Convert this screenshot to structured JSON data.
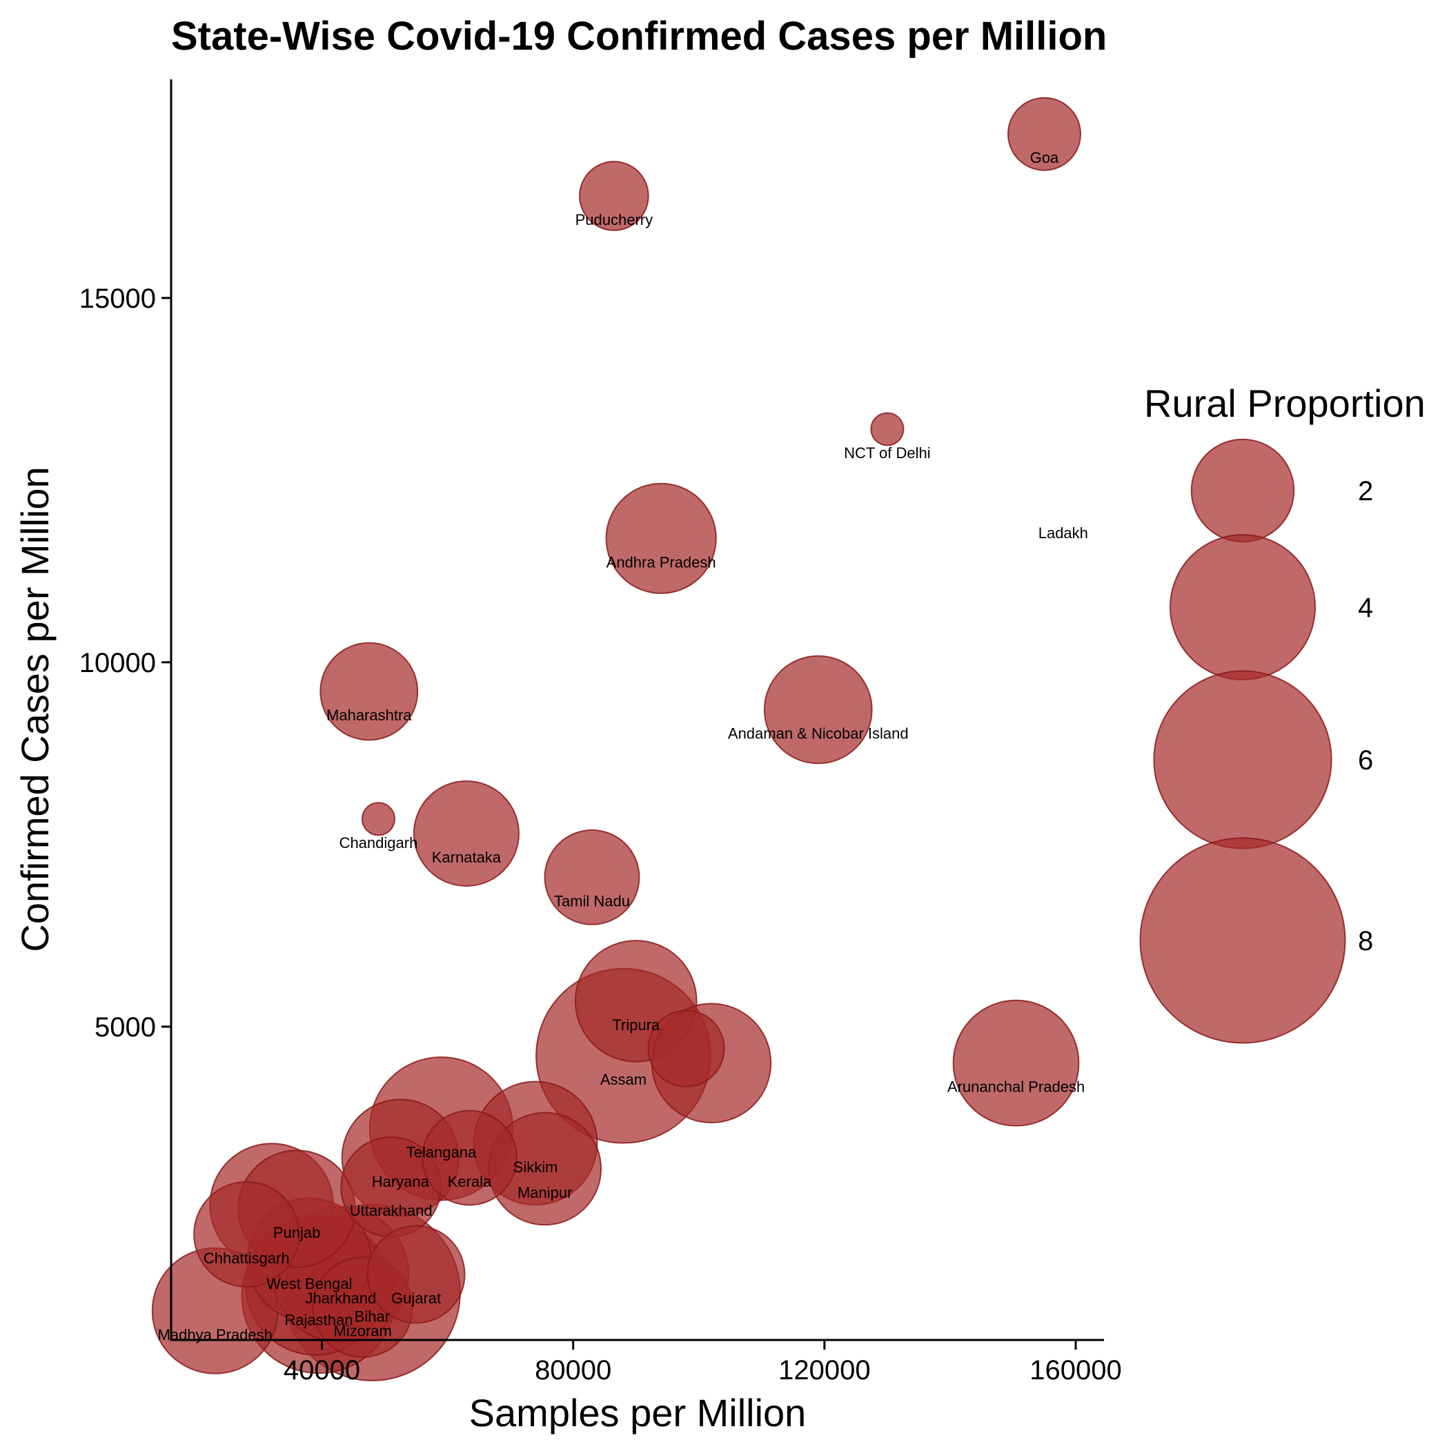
{
  "chart_data": {
    "type": "scatter",
    "title": "State-Wise Covid-19 Confirmed Cases per Million",
    "xlabel": "Samples per Million",
    "ylabel": "Confirmed Cases per Million",
    "xlim": [
      16000,
      164500
    ],
    "ylim": [
      700,
      18000
    ],
    "xticks": [
      40000,
      80000,
      120000,
      160000
    ],
    "yticks": [
      5000,
      10000,
      15000
    ],
    "xtick_labels": [
      "40000",
      "80000",
      "120000",
      "160000"
    ],
    "ytick_labels": [
      "5000",
      "10000",
      "15000"
    ],
    "grid": false,
    "point_color": "#a52a2a",
    "point_opacity": 0.7,
    "legend": {
      "title": "Rural Proportion",
      "position": "right",
      "values": [
        2,
        4,
        6,
        8
      ],
      "labels": [
        "2",
        "4",
        "6",
        "8"
      ]
    },
    "points": [
      {
        "name": "Goa",
        "x": 155000,
        "y": 17250,
        "size": 1.0
      },
      {
        "name": "Puducherry",
        "x": 86500,
        "y": 16400,
        "size": 0.9
      },
      {
        "name": "NCT of Delhi",
        "x": 130000,
        "y": 13200,
        "size": 0.2
      },
      {
        "name": "Ladakh",
        "x": 158000,
        "y": 12100,
        "size": 0.0
      },
      {
        "name": "Andhra Pradesh",
        "x": 94000,
        "y": 11700,
        "size": 2.3
      },
      {
        "name": "Maharashtra",
        "x": 47500,
        "y": 9600,
        "size": 1.8
      },
      {
        "name": "Andaman & Nicobar Island",
        "x": 119000,
        "y": 9350,
        "size": 2.2
      },
      {
        "name": "Chandigarh",
        "x": 49000,
        "y": 7850,
        "size": 0.2
      },
      {
        "name": "Karnataka",
        "x": 63000,
        "y": 7650,
        "size": 2.1
      },
      {
        "name": "Tamil Nadu",
        "x": 83000,
        "y": 7050,
        "size": 1.7
      },
      {
        "name": "Tripura",
        "x": 90000,
        "y": 5350,
        "size": 2.8
      },
      {
        "name": "Assam",
        "x": 88000,
        "y": 4600,
        "size": 5.8
      },
      {
        "name": "",
        "x": 98000,
        "y": 4700,
        "size": 1.1
      },
      {
        "name": "",
        "x": 102000,
        "y": 4500,
        "size": 2.7
      },
      {
        "name": "Arunanchal Pradesh",
        "x": 150500,
        "y": 4500,
        "size": 3.0
      },
      {
        "name": "Telangana",
        "x": 59000,
        "y": 3600,
        "size": 3.9
      },
      {
        "name": "Haryana",
        "x": 52500,
        "y": 3200,
        "size": 2.6
      },
      {
        "name": "Kerala",
        "x": 63500,
        "y": 3200,
        "size": 1.7
      },
      {
        "name": "Sikkim",
        "x": 74000,
        "y": 3400,
        "size": 2.9
      },
      {
        "name": "Manipur",
        "x": 75500,
        "y": 3050,
        "size": 2.4
      },
      {
        "name": "Uttarakhand",
        "x": 51000,
        "y": 2800,
        "size": 1.9
      },
      {
        "name": "Punjab",
        "x": 36000,
        "y": 2500,
        "size": 2.6
      },
      {
        "name": "",
        "x": 32000,
        "y": 2550,
        "size": 2.9
      },
      {
        "name": "Chhattisgarh",
        "x": 28000,
        "y": 2150,
        "size": 2.1
      },
      {
        "name": "West Bengal",
        "x": 38000,
        "y": 1800,
        "size": 2.9
      },
      {
        "name": "Gujarat",
        "x": 55000,
        "y": 1600,
        "size": 1.8
      },
      {
        "name": "Jharkhand",
        "x": 43000,
        "y": 1600,
        "size": 3.5
      },
      {
        "name": "",
        "x": 39000,
        "y": 1450,
        "size": 3.7
      },
      {
        "name": "Bihar",
        "x": 48000,
        "y": 1350,
        "size": 5.9
      },
      {
        "name": "Rajasthan",
        "x": 39500,
        "y": 1300,
        "size": 4.5
      },
      {
        "name": "Mizoram",
        "x": 46500,
        "y": 1150,
        "size": 1.9
      },
      {
        "name": "Madhya Pradesh",
        "x": 23000,
        "y": 1100,
        "size": 3.0
      }
    ]
  }
}
